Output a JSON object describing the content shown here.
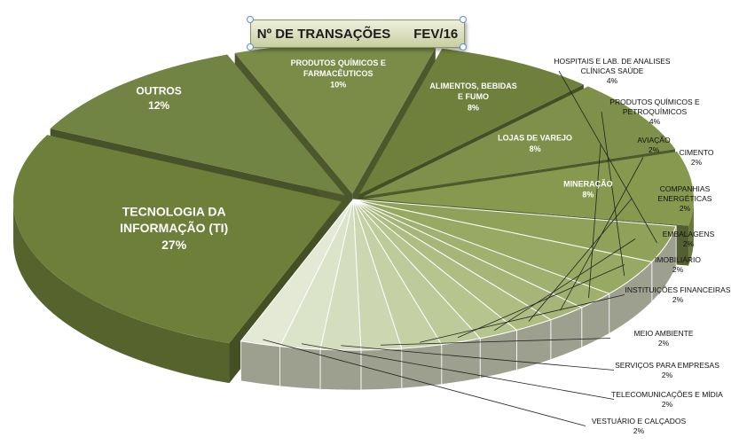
{
  "title": {
    "text": "Nº DE TRANSAÇÕES",
    "period": "FEV/16"
  },
  "chart_data": {
    "type": "pie",
    "title": "Nº DE TRANSAÇÕES FEV/16",
    "legend": "none",
    "slices": [
      {
        "name": "TECNOLOGIA DA INFORMAÇÃO (TI)",
        "value": 27,
        "label": "27%",
        "color": "#6e7f3a",
        "lines": [
          "TECNOLOGIA DA",
          "INFORMAÇÃO (TI)"
        ]
      },
      {
        "name": "OUTROS",
        "value": 12,
        "label": "12%",
        "color": "#728443",
        "lines": [
          "OUTROS"
        ]
      },
      {
        "name": "PRODUTOS QUÍMICOS E FARMACÊUTICOS",
        "value": 10,
        "label": "10%",
        "color": "#7a8c47",
        "lines": [
          "PRODUTOS QUÍMICOS E",
          "FARMACÊUTICOS"
        ]
      },
      {
        "name": "ALIMENTOS, BEBIDAS E FUMO",
        "value": 8,
        "label": "8%",
        "color": "#6f7f3c",
        "lines": [
          "ALIMENTOS, BEBIDAS",
          "E FUMO"
        ]
      },
      {
        "name": "LOJAS DE VAREJO",
        "value": 8,
        "label": "8%",
        "color": "#7e9049",
        "lines": [
          "LOJAS DE VAREJO"
        ]
      },
      {
        "name": "MINERAÇÃO",
        "value": 8,
        "label": "8%",
        "color": "#87994f",
        "lines": [
          "MINERAÇÃO"
        ]
      },
      {
        "name": "HOSPITAIS E LAB. DE ANALISES CLÍNICAS SAÚDE",
        "value": 4,
        "label": "4%",
        "color": "#90a259",
        "lines": [
          "HOSPITAIS E LAB. DE ANALISES",
          "CLÍNICAS SAÚDE"
        ]
      },
      {
        "name": "PRODUTOS QUÍMICOS E PETROQUÍMICOS",
        "value": 4,
        "label": "4%",
        "color": "#98a963",
        "lines": [
          "PRODUTOS QUÍMICOS E",
          "PETROQUÍMICOS"
        ]
      },
      {
        "name": "AVIAÇÃO",
        "value": 2,
        "label": "2%",
        "color": "#a0b06e",
        "lines": [
          "AVIAÇÃO"
        ]
      },
      {
        "name": "CIMENTO",
        "value": 2,
        "label": "2%",
        "color": "#a7b678",
        "lines": [
          "CIMENTO"
        ]
      },
      {
        "name": "COMPANHIAS ENERGÉTICAS",
        "value": 2,
        "label": "2%",
        "color": "#afbd83",
        "lines": [
          "COMPANHIAS",
          "ENERGÉTICAS"
        ]
      },
      {
        "name": "EMBALAGENS",
        "value": 2,
        "label": "2%",
        "color": "#b6c48e",
        "lines": [
          "EMBALAGENS"
        ]
      },
      {
        "name": "IMOBILIÁRIO",
        "value": 2,
        "label": "2%",
        "color": "#bdca99",
        "lines": [
          "IMOBILIÁRIO"
        ]
      },
      {
        "name": "INSTITUIÇÕES FINANCEIRAS",
        "value": 2,
        "label": "2%",
        "color": "#c5d0a5",
        "lines": [
          "INSTITUIÇÕES FINANCEIRAS"
        ]
      },
      {
        "name": "MEIO AMBIENTE",
        "value": 2,
        "label": "2%",
        "color": "#ccd7b1",
        "lines": [
          "MEIO AMBIENTE"
        ]
      },
      {
        "name": "SERVIÇOS PARA EMPRESAS",
        "value": 2,
        "label": "2%",
        "color": "#d4ddbd",
        "lines": [
          "SERVIÇOS PARA EMPRESAS"
        ]
      },
      {
        "name": "TELECOMUNICAÇÕES E MÍDIA",
        "value": 2,
        "label": "2%",
        "color": "#dbe3c9",
        "lines": [
          "TELECOMUNICAÇÕES E MÍDIA"
        ]
      },
      {
        "name": "VESTUÁRIO E CALÇADOS",
        "value": 2,
        "label": "2%",
        "color": "#e3e9d5",
        "lines": [
          "VESTUÁRIO E CALÇADOS"
        ]
      }
    ]
  }
}
